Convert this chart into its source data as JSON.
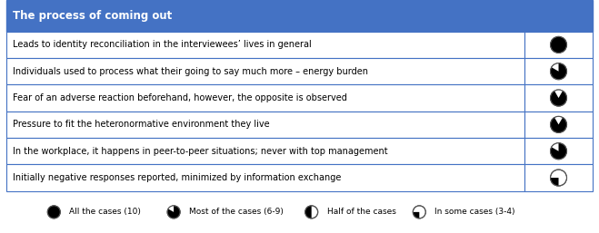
{
  "title": "The process of coming out",
  "title_bg": "#4472c4",
  "title_color": "#ffffff",
  "border_color": "#4472c4",
  "rows": [
    "Leads to identity reconciliation in the interviewees’ lives in general",
    "Individuals used to process what their going to say much more – energy burden",
    "Fear of an adverse reaction beforehand, however, the opposite is observed",
    "Pressure to fit the heteronormative environment they live",
    "In the workplace, it happens in peer-to-peer situations; never with top management",
    "Initially negative responses reported, minimized by information exchange"
  ],
  "pie_types": [
    "all",
    "most",
    "most_less",
    "most_less2",
    "most",
    "some"
  ],
  "legend_items": [
    {
      "label": "All the cases (10)",
      "type": "all"
    },
    {
      "label": "Most of the cases (6-9)",
      "type": "most"
    },
    {
      "label": "Half of the cases",
      "type": "half"
    },
    {
      "label": "In some cases (3-4)",
      "type": "some"
    }
  ],
  "figsize": [
    6.59,
    2.57
  ],
  "dpi": 100
}
